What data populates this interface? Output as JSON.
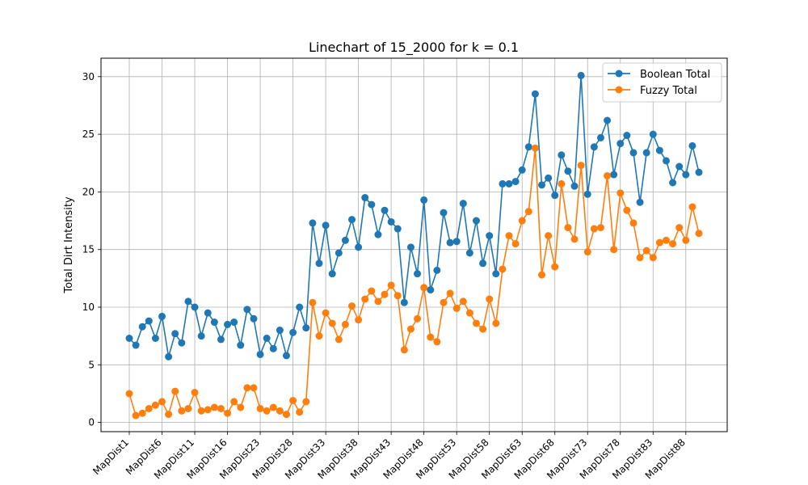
{
  "chart_data": {
    "type": "line",
    "title": "Linechart of 15_2000 for k = 0.1",
    "xlabel": "",
    "ylabel": "Total Dirt Intensity",
    "ylim": [
      -0.8,
      31.6
    ],
    "yticks": [
      0,
      5,
      10,
      15,
      20,
      25,
      30
    ],
    "grid": true,
    "legend_position": "top-right",
    "x_tick_labels": [
      "MapDist1",
      "MapDist6",
      "MapDist11",
      "MapDist16",
      "MapDist23",
      "MapDist28",
      "MapDist33",
      "MapDist38",
      "MapDist43",
      "MapDist48",
      "MapDist53",
      "MapDist58",
      "MapDist63",
      "MapDist68",
      "MapDist73",
      "MapDist78",
      "MapDist83",
      "MapDist88"
    ],
    "series": [
      {
        "name": "Boolean Total",
        "color": "#1f77b4",
        "values": [
          7.3,
          6.7,
          8.3,
          8.8,
          7.3,
          9.2,
          5.7,
          7.7,
          6.9,
          10.5,
          10.0,
          7.5,
          9.5,
          8.7,
          7.2,
          8.5,
          8.7,
          6.7,
          9.8,
          9.0,
          5.9,
          7.3,
          6.4,
          8.0,
          5.8,
          7.8,
          10.0,
          8.2,
          17.3,
          13.8,
          17.1,
          12.9,
          14.7,
          15.8,
          17.6,
          15.2,
          19.5,
          18.9,
          16.3,
          18.4,
          17.4,
          16.8,
          10.4,
          15.2,
          12.9,
          19.3,
          11.5,
          13.2,
          18.2,
          15.6,
          15.7,
          19.0,
          14.7,
          17.5,
          13.8,
          16.2,
          12.9,
          20.7,
          20.7,
          20.9,
          21.9,
          23.9,
          28.5,
          20.6,
          21.2,
          19.7,
          23.2,
          21.8,
          20.5,
          30.1,
          19.8,
          23.9,
          24.7,
          26.2,
          21.5,
          24.2,
          24.9,
          23.4,
          19.1,
          23.4,
          25.0,
          23.6,
          22.7,
          20.8,
          22.2,
          21.5,
          24.0,
          21.7
        ]
      },
      {
        "name": "Fuzzy Total",
        "color": "#ff7f0e",
        "values": [
          2.5,
          0.6,
          0.8,
          1.2,
          1.5,
          1.8,
          0.7,
          2.7,
          1.0,
          1.2,
          2.6,
          1.0,
          1.1,
          1.3,
          1.2,
          0.8,
          1.8,
          1.3,
          3.0,
          3.0,
          1.2,
          1.0,
          1.3,
          1.0,
          0.7,
          1.9,
          0.9,
          1.8,
          10.4,
          7.5,
          9.5,
          8.6,
          7.2,
          8.5,
          10.1,
          8.9,
          10.7,
          11.4,
          10.5,
          11.1,
          11.9,
          11.0,
          6.3,
          8.1,
          9.0,
          11.7,
          7.4,
          7.0,
          10.4,
          11.2,
          9.9,
          10.5,
          9.5,
          8.6,
          8.1,
          10.7,
          8.6,
          13.3,
          16.2,
          15.5,
          17.5,
          18.3,
          23.8,
          12.8,
          16.2,
          13.5,
          20.7,
          16.9,
          15.9,
          22.3,
          14.8,
          16.8,
          16.9,
          21.4,
          15.0,
          19.9,
          18.4,
          17.3,
          14.3,
          14.9,
          14.3,
          15.6,
          15.8,
          15.5,
          16.9,
          15.8,
          18.7,
          16.4
        ]
      }
    ]
  }
}
